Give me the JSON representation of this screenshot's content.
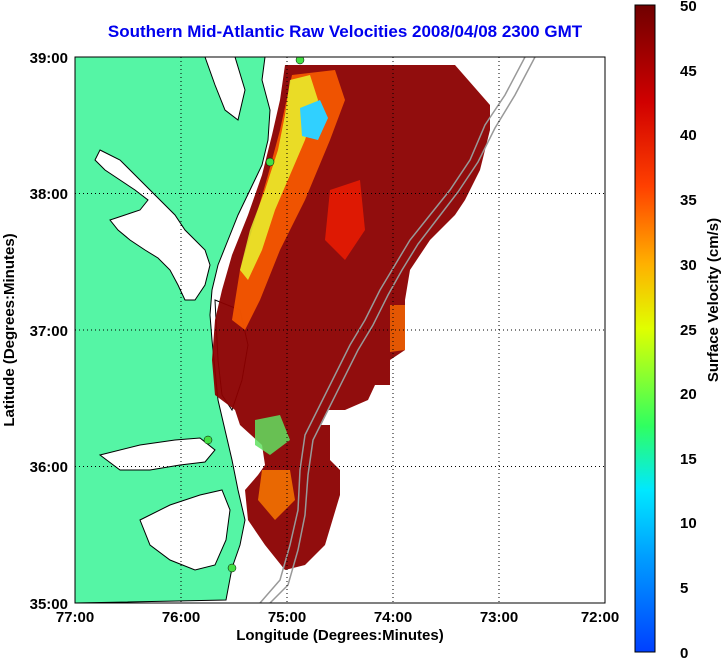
{
  "title": "Southern Mid-Atlantic Raw Velocities 2008/04/08 2300 GMT",
  "xlabel": "Longitude (Degrees:Minutes)",
  "ylabel": "Latitude (Degrees:Minutes)",
  "colorbar_label": "Surface Velocity (cm/s)",
  "x_ticks": [
    "77:00",
    "76:00",
    "75:00",
    "74:00",
    "73:00",
    "72:00"
  ],
  "y_ticks": [
    "39:00",
    "38:00",
    "37:00",
    "36:00",
    "35:00"
  ],
  "cb_ticks": [
    "50",
    "45",
    "40",
    "35",
    "30",
    "25",
    "20",
    "15",
    "10",
    "5",
    "0"
  ],
  "colors": {
    "land": "#55f5a5",
    "ocean": "#ffffff",
    "title": "#0000ee",
    "grid": "#000000",
    "bathymetry": "#999999"
  },
  "map_data": {
    "lon_range": [
      -77,
      -72
    ],
    "lat_range": [
      35,
      39
    ],
    "color_range_cm_s": [
      0,
      50
    ],
    "grid": "dotted",
    "colormap": "jet"
  }
}
